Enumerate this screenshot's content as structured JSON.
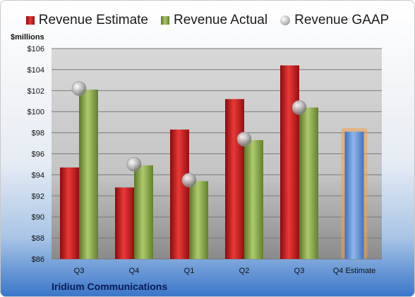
{
  "chart_data": {
    "type": "bar",
    "title": "",
    "company": "Iridium Communications",
    "ylabel": "$millions",
    "ylim": [
      86,
      106
    ],
    "yticks": [
      "$86",
      "$88",
      "$90",
      "$92",
      "$94",
      "$96",
      "$98",
      "$100",
      "$102",
      "$104",
      "$106"
    ],
    "ytick_values": [
      86,
      88,
      90,
      92,
      94,
      96,
      98,
      100,
      102,
      104,
      106
    ],
    "categories": [
      "Q3",
      "Q4",
      "Q1",
      "Q2",
      "Q3",
      "Q4 Estimate"
    ],
    "legend_position": "top",
    "grid": true,
    "series": [
      {
        "name": "Revenue Estimate",
        "kind": "bar",
        "color": "#c8181c",
        "values": [
          94.7,
          92.8,
          98.3,
          101.2,
          104.4,
          null
        ]
      },
      {
        "name": "Revenue Actual",
        "kind": "bar",
        "color": "#8fb04a",
        "values": [
          102.1,
          94.9,
          93.4,
          97.3,
          100.4,
          null
        ]
      },
      {
        "name": "Revenue GAAP",
        "kind": "marker",
        "color": "#b5b5b5",
        "values": [
          102.2,
          95.0,
          93.5,
          97.4,
          100.4,
          null
        ]
      },
      {
        "name": "Q4 Estimate",
        "kind": "bar",
        "color": "#5b8fd6",
        "highlight_color": "#f2a04a",
        "values": [
          null,
          null,
          null,
          null,
          null,
          98.1
        ]
      }
    ]
  }
}
